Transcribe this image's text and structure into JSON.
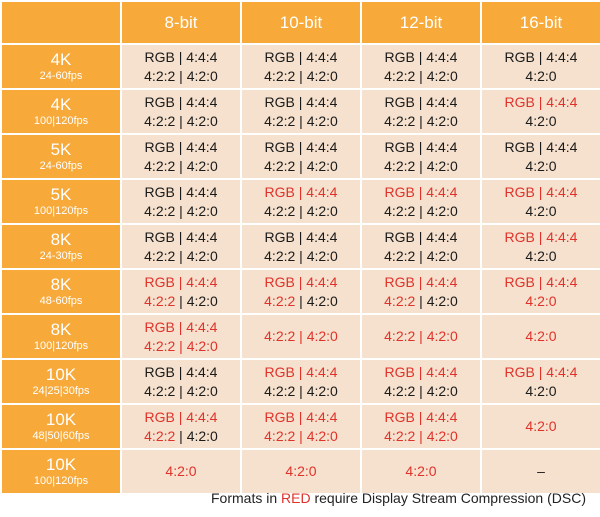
{
  "header": {
    "columns": [
      "8-bit",
      "10-bit",
      "12-bit",
      "16-bit"
    ]
  },
  "rows": [
    {
      "res": "4K",
      "fps": "24-60fps",
      "cells": [
        {
          "lines": [
            [
              {
                "t": "RGB | 4:4:4",
                "red": false
              }
            ],
            [
              {
                "t": "4:2:2 | 4:2:0",
                "red": false
              }
            ]
          ]
        },
        {
          "lines": [
            [
              {
                "t": "RGB | 4:4:4",
                "red": false
              }
            ],
            [
              {
                "t": "4:2:2 | 4:2:0",
                "red": false
              }
            ]
          ]
        },
        {
          "lines": [
            [
              {
                "t": "RGB | 4:4:4",
                "red": false
              }
            ],
            [
              {
                "t": "4:2:2 | 4:2:0",
                "red": false
              }
            ]
          ]
        },
        {
          "lines": [
            [
              {
                "t": "RGB | 4:4:4",
                "red": false
              }
            ],
            [
              {
                "t": "4:2:0",
                "red": false
              }
            ]
          ]
        }
      ]
    },
    {
      "res": "4K",
      "fps": "100|120fps",
      "cells": [
        {
          "lines": [
            [
              {
                "t": "RGB | 4:4:4",
                "red": false
              }
            ],
            [
              {
                "t": "4:2:2 | 4:2:0",
                "red": false
              }
            ]
          ]
        },
        {
          "lines": [
            [
              {
                "t": "RGB | 4:4:4",
                "red": false
              }
            ],
            [
              {
                "t": "4:2:2 | 4:2:0",
                "red": false
              }
            ]
          ]
        },
        {
          "lines": [
            [
              {
                "t": "RGB | 4:4:4",
                "red": false
              }
            ],
            [
              {
                "t": "4:2:2 | 4:2:0",
                "red": false
              }
            ]
          ]
        },
        {
          "lines": [
            [
              {
                "t": "RGB | 4:4:4",
                "red": true
              }
            ],
            [
              {
                "t": "4:2:0",
                "red": false
              }
            ]
          ]
        }
      ]
    },
    {
      "res": "5K",
      "fps": "24-60fps",
      "cells": [
        {
          "lines": [
            [
              {
                "t": "RGB | 4:4:4",
                "red": false
              }
            ],
            [
              {
                "t": "4:2:2 | 4:2:0",
                "red": false
              }
            ]
          ]
        },
        {
          "lines": [
            [
              {
                "t": "RGB | 4:4:4",
                "red": false
              }
            ],
            [
              {
                "t": "4:2:2 | 4:2:0",
                "red": false
              }
            ]
          ]
        },
        {
          "lines": [
            [
              {
                "t": "RGB | 4:4:4",
                "red": false
              }
            ],
            [
              {
                "t": "4:2:2 | 4:2:0",
                "red": false
              }
            ]
          ]
        },
        {
          "lines": [
            [
              {
                "t": "RGB | 4:4:4",
                "red": false
              }
            ],
            [
              {
                "t": "4:2:0",
                "red": false
              }
            ]
          ]
        }
      ]
    },
    {
      "res": "5K",
      "fps": "100|120fps",
      "cells": [
        {
          "lines": [
            [
              {
                "t": "RGB | 4:4:4",
                "red": false
              }
            ],
            [
              {
                "t": "4:2:2 | 4:2:0",
                "red": false
              }
            ]
          ]
        },
        {
          "lines": [
            [
              {
                "t": "RGB | 4:4:4",
                "red": true
              }
            ],
            [
              {
                "t": "4:2:2 | 4:2:0",
                "red": false
              }
            ]
          ]
        },
        {
          "lines": [
            [
              {
                "t": "RGB | 4:4:4",
                "red": true
              }
            ],
            [
              {
                "t": "4:2:2 | 4:2:0",
                "red": false
              }
            ]
          ]
        },
        {
          "lines": [
            [
              {
                "t": "RGB | 4:4:4",
                "red": true
              }
            ],
            [
              {
                "t": "4:2:0",
                "red": false
              }
            ]
          ]
        }
      ]
    },
    {
      "res": "8K",
      "fps": "24-30fps",
      "cells": [
        {
          "lines": [
            [
              {
                "t": "RGB | 4:4:4",
                "red": false
              }
            ],
            [
              {
                "t": "4:2:2 | 4:2:0",
                "red": false
              }
            ]
          ]
        },
        {
          "lines": [
            [
              {
                "t": "RGB | 4:4:4",
                "red": false
              }
            ],
            [
              {
                "t": "4:2:2 | 4:2:0",
                "red": false
              }
            ]
          ]
        },
        {
          "lines": [
            [
              {
                "t": "RGB | 4:4:4",
                "red": false
              }
            ],
            [
              {
                "t": "4:2:2 | 4:2:0",
                "red": false
              }
            ]
          ]
        },
        {
          "lines": [
            [
              {
                "t": "RGB | 4:4:4",
                "red": true
              }
            ],
            [
              {
                "t": "4:2:0",
                "red": false
              }
            ]
          ]
        }
      ]
    },
    {
      "res": "8K",
      "fps": "48-60fps",
      "cells": [
        {
          "lines": [
            [
              {
                "t": "RGB | 4:4:4",
                "red": true
              }
            ],
            [
              {
                "t": "4:2:2",
                "red": true
              },
              {
                "t": " | 4:2:0",
                "red": false
              }
            ]
          ]
        },
        {
          "lines": [
            [
              {
                "t": "RGB | 4:4:4",
                "red": true
              }
            ],
            [
              {
                "t": "4:2:2",
                "red": true
              },
              {
                "t": " | 4:2:0",
                "red": false
              }
            ]
          ]
        },
        {
          "lines": [
            [
              {
                "t": "RGB | 4:4:4",
                "red": true
              }
            ],
            [
              {
                "t": "4:2:2",
                "red": true
              },
              {
                "t": " | 4:2:0",
                "red": false
              }
            ]
          ]
        },
        {
          "lines": [
            [
              {
                "t": "RGB | 4:4:4",
                "red": true
              }
            ],
            [
              {
                "t": "4:2:0",
                "red": true
              }
            ]
          ]
        }
      ]
    },
    {
      "res": "8K",
      "fps": "100|120fps",
      "cells": [
        {
          "lines": [
            [
              {
                "t": "RGB | 4:4:4",
                "red": true
              }
            ],
            [
              {
                "t": "4:2:2 | 4:2:0",
                "red": true
              }
            ]
          ]
        },
        {
          "lines": [
            [
              {
                "t": "4:2:2 | 4:2:0",
                "red": true
              }
            ]
          ]
        },
        {
          "lines": [
            [
              {
                "t": "4:2:2 | 4:2:0",
                "red": true
              }
            ]
          ]
        },
        {
          "lines": [
            [
              {
                "t": "4:2:0",
                "red": true
              }
            ]
          ]
        }
      ]
    },
    {
      "res": "10K",
      "fps": "24|25|30fps",
      "cells": [
        {
          "lines": [
            [
              {
                "t": "RGB | 4:4:4",
                "red": false
              }
            ],
            [
              {
                "t": "4:2:2 | 4:2:0",
                "red": false
              }
            ]
          ]
        },
        {
          "lines": [
            [
              {
                "t": "RGB | 4:4:4",
                "red": true
              }
            ],
            [
              {
                "t": "4:2:2 | 4:2:0",
                "red": false
              }
            ]
          ]
        },
        {
          "lines": [
            [
              {
                "t": "RGB | 4:4:4",
                "red": true
              }
            ],
            [
              {
                "t": "4:2:2 | 4:2:0",
                "red": false
              }
            ]
          ]
        },
        {
          "lines": [
            [
              {
                "t": "RGB | 4:4:4",
                "red": true
              }
            ],
            [
              {
                "t": "4:2:0",
                "red": false
              }
            ]
          ]
        }
      ]
    },
    {
      "res": "10K",
      "fps": "48|50|60fps",
      "cells": [
        {
          "lines": [
            [
              {
                "t": "RGB | 4:4:4",
                "red": true
              }
            ],
            [
              {
                "t": "4:2:2",
                "red": true
              },
              {
                "t": " | 4:2:0",
                "red": false
              }
            ]
          ]
        },
        {
          "lines": [
            [
              {
                "t": "RGB | 4:4:4",
                "red": true
              }
            ],
            [
              {
                "t": "4:2:2 | 4:2:0",
                "red": true
              }
            ]
          ]
        },
        {
          "lines": [
            [
              {
                "t": "RGB | 4:4:4",
                "red": true
              }
            ],
            [
              {
                "t": "4:2:2 | 4:2:0",
                "red": true
              }
            ]
          ]
        },
        {
          "lines": [
            [
              {
                "t": "4:2:0",
                "red": true
              }
            ]
          ]
        }
      ]
    },
    {
      "res": "10K",
      "fps": "100|120fps",
      "cells": [
        {
          "lines": [
            [
              {
                "t": "4:2:0",
                "red": true
              }
            ]
          ]
        },
        {
          "lines": [
            [
              {
                "t": "4:2:0",
                "red": true
              }
            ]
          ]
        },
        {
          "lines": [
            [
              {
                "t": "4:2:0",
                "red": true
              }
            ]
          ]
        },
        {
          "lines": [
            [
              {
                "t": "–",
                "red": false
              }
            ]
          ]
        }
      ]
    }
  ],
  "caption": {
    "before": "Formats in ",
    "red_word": "RED",
    "after": " require Display Stream Compression (DSC)"
  },
  "colors": {
    "header_bg": "#f7a93a",
    "cell_bg": "#f5e1cd",
    "red_text": "#e0322a",
    "header_text": "#ffffff"
  }
}
